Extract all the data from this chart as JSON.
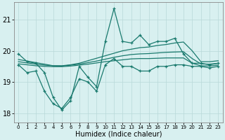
{
  "xlabel": "Humidex (Indice chaleur)",
  "x": [
    0,
    1,
    2,
    3,
    4,
    5,
    6,
    7,
    8,
    9,
    10,
    11,
    12,
    13,
    14,
    15,
    16,
    17,
    18,
    19,
    20,
    21,
    22,
    23
  ],
  "main_line": [
    19.9,
    19.65,
    19.6,
    19.3,
    18.5,
    18.1,
    18.4,
    19.5,
    19.15,
    18.85,
    20.3,
    21.35,
    20.3,
    20.25,
    20.5,
    20.2,
    20.3,
    20.3,
    20.4,
    19.9,
    19.6,
    19.6,
    19.55,
    19.6
  ],
  "lower_line": [
    19.55,
    19.3,
    19.35,
    18.7,
    18.3,
    18.15,
    18.5,
    19.1,
    19.0,
    18.7,
    19.55,
    19.75,
    19.5,
    19.5,
    19.35,
    19.35,
    19.5,
    19.5,
    19.55,
    19.55,
    19.5,
    19.5,
    19.45,
    19.5
  ],
  "reg_upper": [
    19.72,
    19.67,
    19.62,
    19.57,
    19.52,
    19.52,
    19.55,
    19.6,
    19.68,
    19.76,
    19.84,
    19.92,
    20.0,
    20.05,
    20.1,
    20.12,
    20.17,
    20.2,
    20.25,
    20.28,
    20.0,
    19.65,
    19.65,
    19.68
  ],
  "reg_mid": [
    19.65,
    19.61,
    19.57,
    19.54,
    19.52,
    19.51,
    19.54,
    19.57,
    19.62,
    19.67,
    19.73,
    19.79,
    19.84,
    19.88,
    19.9,
    19.91,
    19.93,
    19.95,
    19.96,
    19.97,
    19.75,
    19.58,
    19.57,
    19.6
  ],
  "reg_lower": [
    19.58,
    19.55,
    19.52,
    19.5,
    19.49,
    19.49,
    19.51,
    19.54,
    19.57,
    19.61,
    19.65,
    19.68,
    19.71,
    19.74,
    19.75,
    19.75,
    19.76,
    19.77,
    19.77,
    19.77,
    19.6,
    19.52,
    19.51,
    19.54
  ],
  "line_color": "#1a7a6e",
  "bg_color": "#d8f0f0",
  "grid_color": "#b8d8d8",
  "ylim": [
    17.7,
    21.55
  ],
  "yticks": [
    18,
    19,
    20,
    21
  ],
  "xlim": [
    -0.5,
    23.5
  ]
}
